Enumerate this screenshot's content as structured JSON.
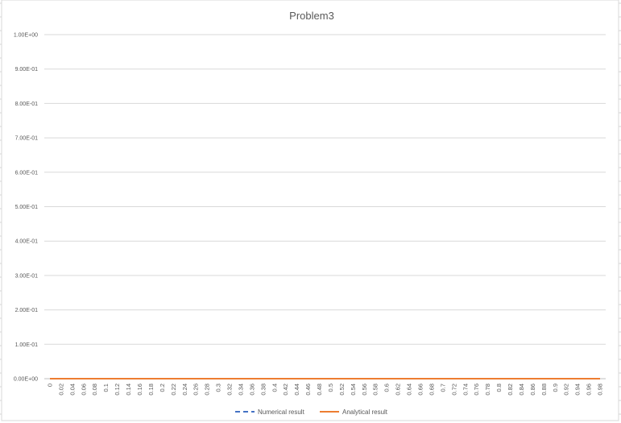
{
  "chart_data": {
    "type": "line",
    "title": "Problem3",
    "xlabel": "",
    "ylabel": "",
    "ylim": [
      0,
      1
    ],
    "y_ticks": [
      "0.00E+00",
      "1.00E-01",
      "2.00E-01",
      "3.00E-01",
      "4.00E-01",
      "5.00E-01",
      "6.00E-01",
      "7.00E-01",
      "8.00E-01",
      "9.00E-01",
      "1.00E+00"
    ],
    "categories": [
      "0",
      "0.02",
      "0.04",
      "0.06",
      "0.08",
      "0.1",
      "0.12",
      "0.14",
      "0.16",
      "0.18",
      "0.2",
      "0.22",
      "0.24",
      "0.26",
      "0.28",
      "0.3",
      "0.32",
      "0.34",
      "0.36",
      "0.38",
      "0.4",
      "0.42",
      "0.44",
      "0.46",
      "0.48",
      "0.5",
      "0.52",
      "0.54",
      "0.56",
      "0.58",
      "0.6",
      "0.62",
      "0.64",
      "0.66",
      "0.68",
      "0.7",
      "0.72",
      "0.74",
      "0.76",
      "0.78",
      "0.8",
      "0.82",
      "0.84",
      "0.86",
      "0.88",
      "0.9",
      "0.92",
      "0.94",
      "0.96",
      "0.98"
    ],
    "series": [
      {
        "name": "Numerical result",
        "color": "#4472C4",
        "dash": "dashed",
        "values": [
          0,
          0,
          0,
          0,
          0,
          0,
          0,
          0,
          0,
          0,
          0,
          0,
          0,
          0,
          0,
          0,
          0,
          0,
          0,
          0,
          0,
          0,
          0,
          0,
          0,
          0,
          0,
          0,
          0,
          0,
          0,
          0,
          0,
          0,
          0,
          0,
          0,
          0,
          0,
          0,
          0,
          0,
          0,
          0,
          0,
          0,
          0,
          0,
          0,
          0
        ]
      },
      {
        "name": "Analytical result",
        "color": "#ED7D31",
        "dash": "solid",
        "values": [
          0,
          0,
          0,
          0,
          0,
          0,
          0,
          0,
          0,
          0,
          0,
          0,
          0,
          0,
          0,
          0,
          0,
          0,
          0,
          0,
          0,
          0,
          0,
          0,
          0,
          0,
          0,
          0,
          0,
          0,
          0,
          0,
          0,
          0,
          0,
          0,
          0,
          0,
          0,
          0,
          0,
          0,
          0,
          0,
          0,
          0,
          0,
          0,
          0,
          0
        ]
      }
    ],
    "grid": true,
    "legend_position": "bottom"
  }
}
